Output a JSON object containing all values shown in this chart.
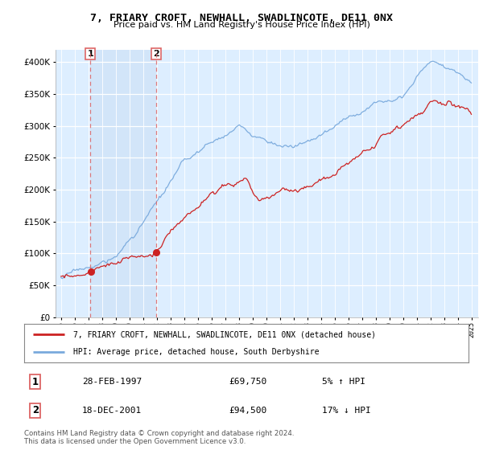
{
  "title": "7, FRIARY CROFT, NEWHALL, SWADLINCOTE, DE11 0NX",
  "subtitle": "Price paid vs. HM Land Registry's House Price Index (HPI)",
  "legend_line1": "7, FRIARY CROFT, NEWHALL, SWADLINCOTE, DE11 0NX (detached house)",
  "legend_line2": "HPI: Average price, detached house, South Derbyshire",
  "transaction1_date": "28-FEB-1997",
  "transaction1_price": "£69,750",
  "transaction1_hpi": "5% ↑ HPI",
  "transaction1_year": 1997.15,
  "transaction1_value": 69750,
  "transaction2_date": "18-DEC-2001",
  "transaction2_price": "£94,500",
  "transaction2_hpi": "17% ↓ HPI",
  "transaction2_year": 2001.96,
  "transaction2_value": 94500,
  "hpi_color": "#7aaadd",
  "price_color": "#cc2222",
  "marker_color": "#cc2222",
  "vline_color": "#dd6666",
  "background_color": "#ddeeff",
  "highlight_color": "#cce0f5",
  "plot_bg": "#ffffff",
  "grid_color": "#c8d8e8",
  "yticks": [
    0,
    50000,
    100000,
    150000,
    200000,
    250000,
    300000,
    350000,
    400000
  ],
  "ylim_min": 0,
  "ylim_max": 420000,
  "footer": "Contains HM Land Registry data © Crown copyright and database right 2024.\nThis data is licensed under the Open Government Licence v3.0."
}
